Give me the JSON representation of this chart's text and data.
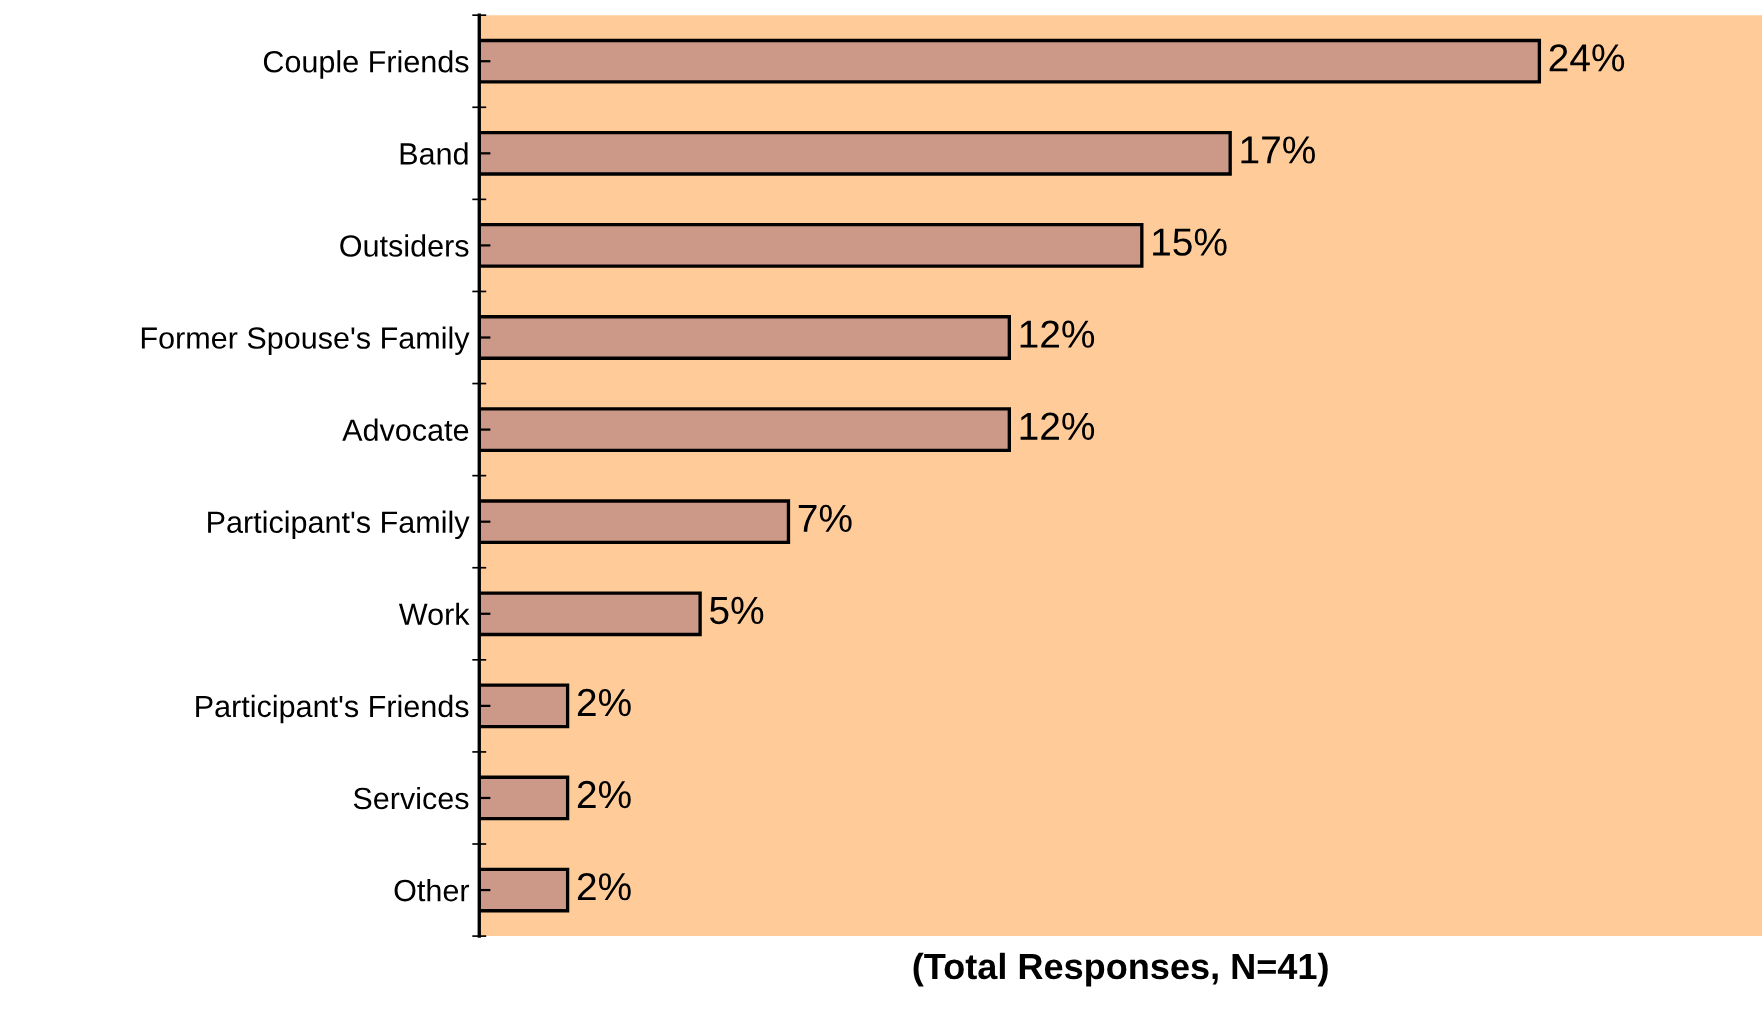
{
  "chart_data": {
    "type": "bar",
    "orientation": "horizontal",
    "categories": [
      "Couple Friends",
      "Band",
      "Outsiders",
      "Former Spouse's Family",
      "Advocate",
      "Participant's Family",
      "Work",
      "Participant's Friends",
      "Services",
      "Other"
    ],
    "values": [
      24,
      17,
      15,
      12,
      12,
      7,
      5,
      2,
      2,
      2
    ],
    "value_labels": [
      "24%",
      "17%",
      "15%",
      "12%",
      "12%",
      "7%",
      "5%",
      "2%",
      "2%",
      "2%"
    ],
    "color": "#cc9988",
    "xlabel": "(Total Responses, N=41)",
    "grid": false,
    "legend": false
  }
}
